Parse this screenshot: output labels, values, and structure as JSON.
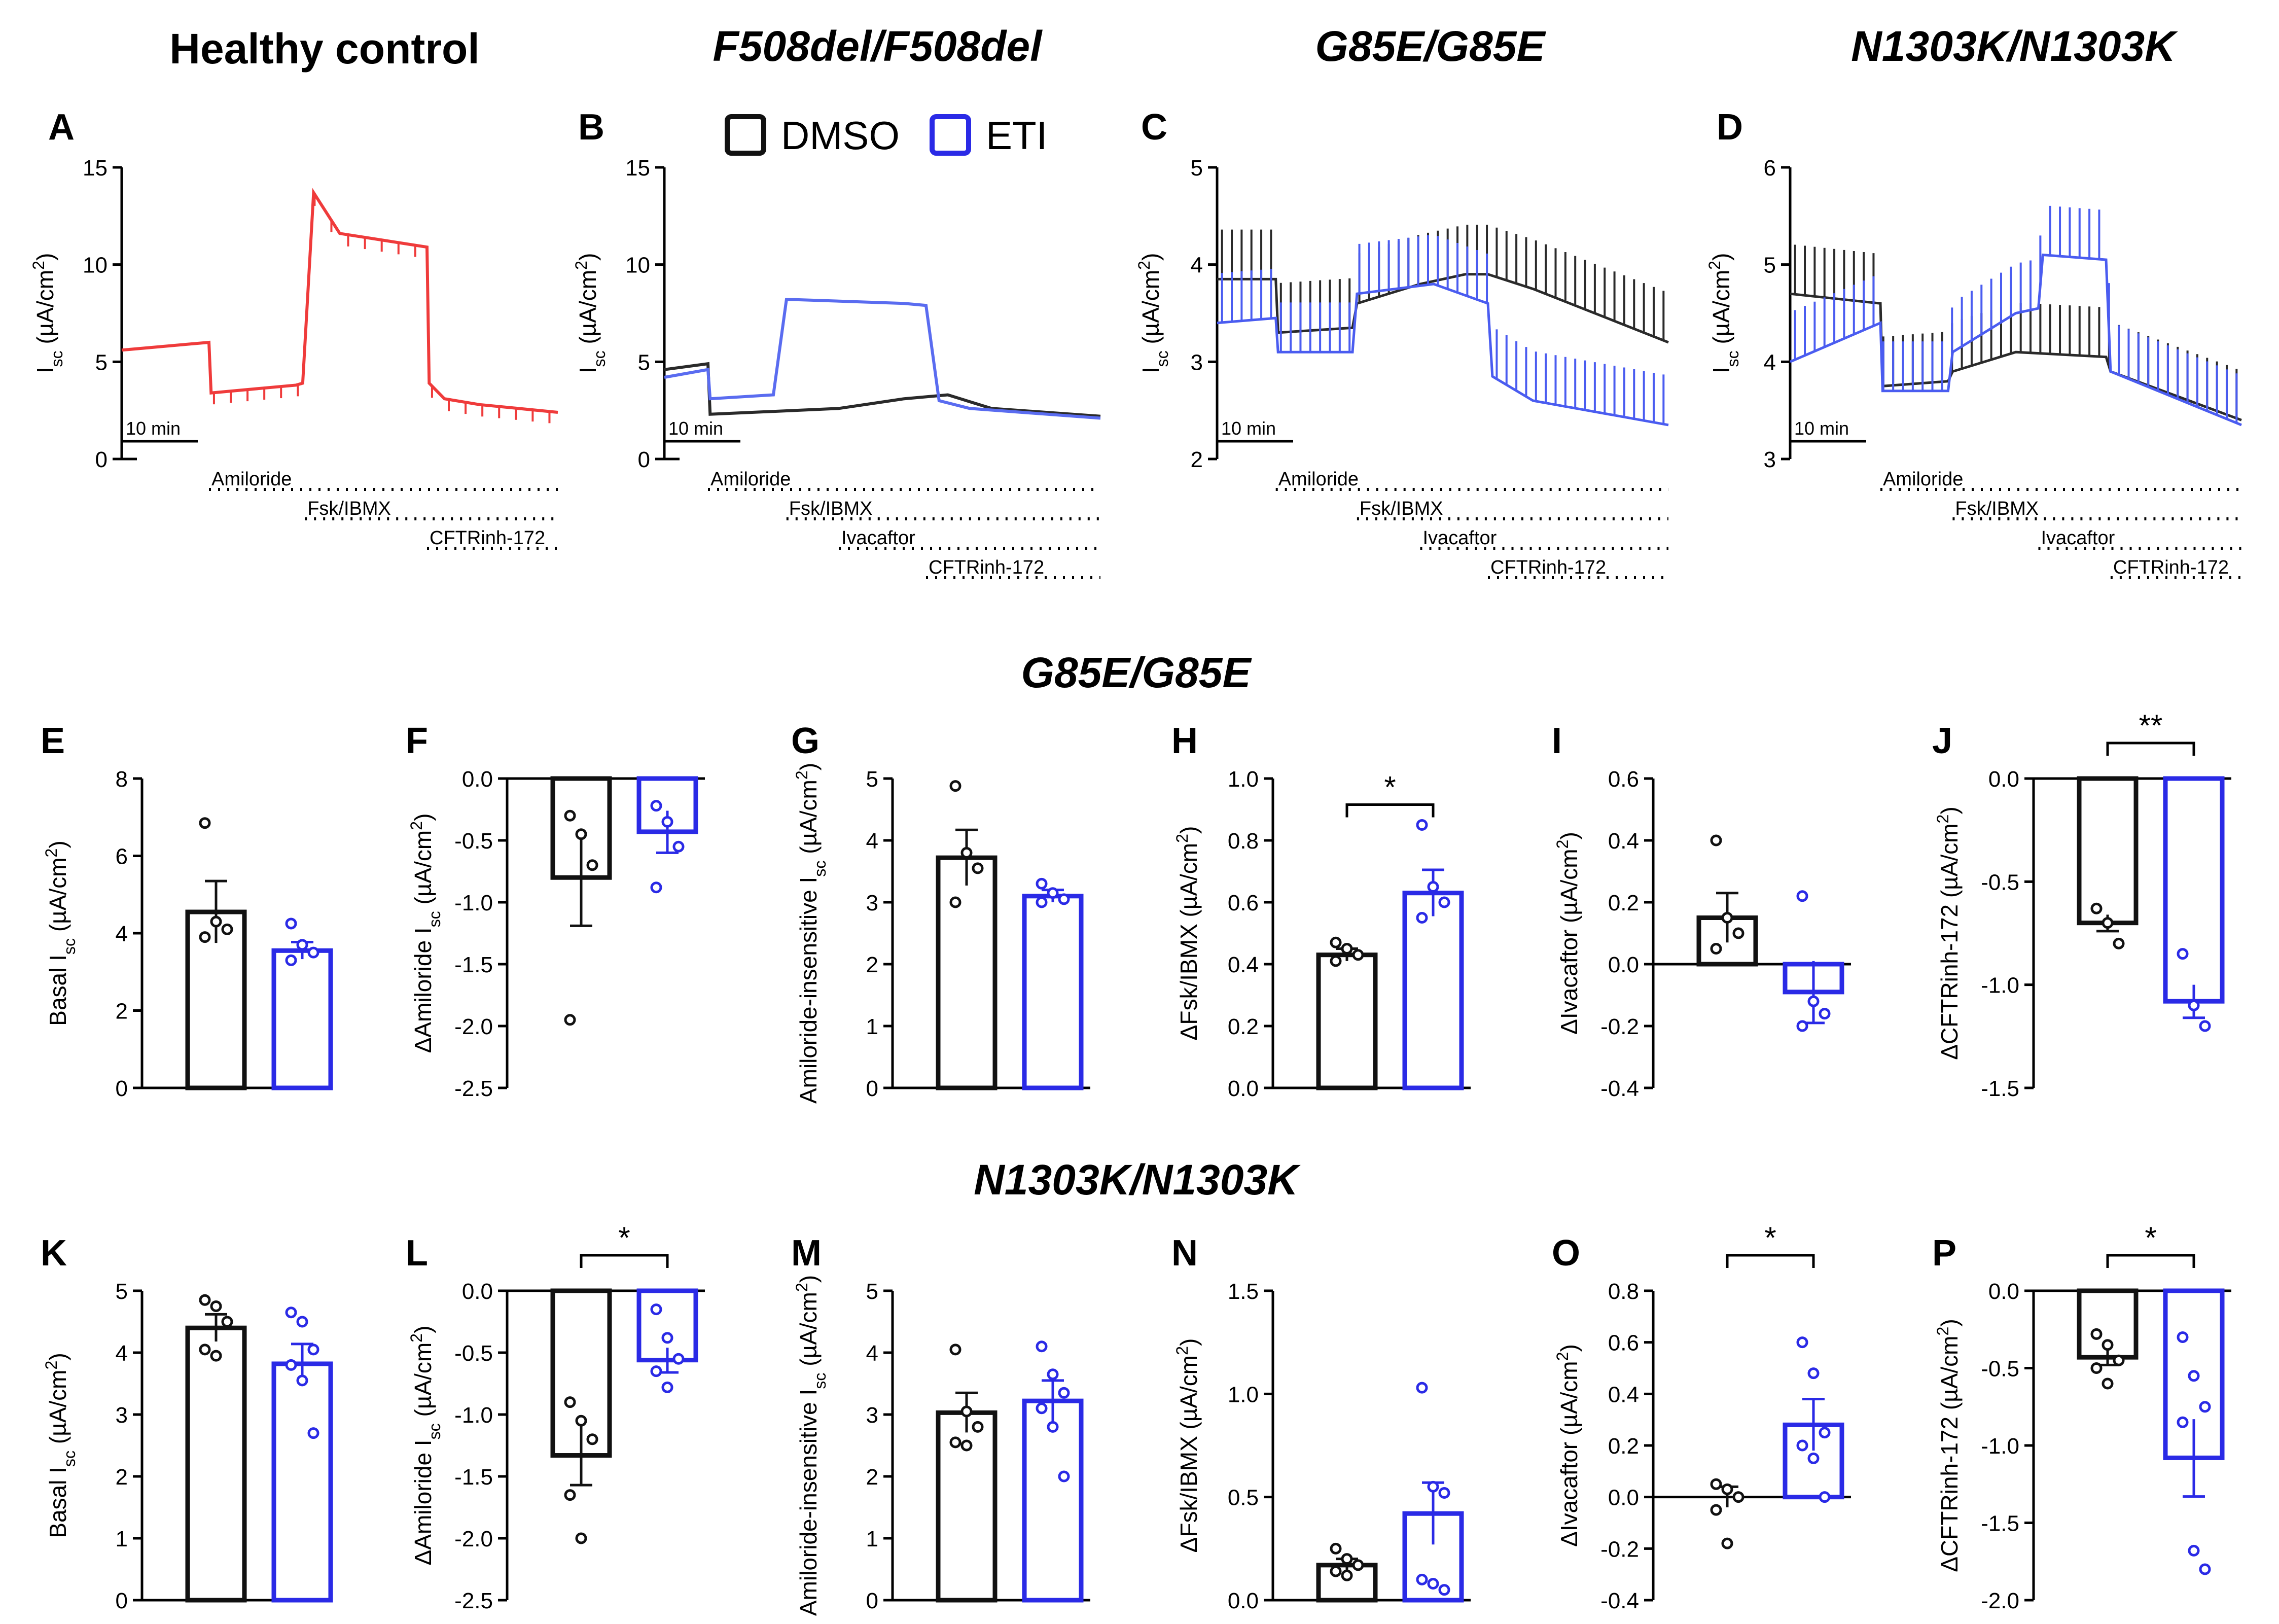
{
  "column_titles": [
    "Healthy control",
    "F508del/F508del",
    "G85E/G85E",
    "N1303K/N1303K"
  ],
  "row_titles": [
    "G85E/G85E",
    "N1303K/N1303K"
  ],
  "colors": {
    "dmso": "#111111",
    "eti": "#2a2ae6",
    "healthy": "#ef3b3b",
    "eti_trace": "#4a5cf0",
    "dmso_trace": "#2a2a2a"
  },
  "legend": [
    {
      "label": "DMSO",
      "color": "#111111"
    },
    {
      "label": "ETI",
      "color": "#2a2ae6"
    }
  ],
  "scale_bar_label": "10 min",
  "chart_data": [
    {
      "panel": "A",
      "type": "line",
      "ylabel": "I_sc (µA/cm²)",
      "ylim": [
        0,
        15
      ],
      "yticks": [
        "0",
        "5",
        "10",
        "15"
      ],
      "series": [
        {
          "color": "red",
          "x": [
            0,
            0.2,
            0.205,
            0.4,
            0.415,
            0.44,
            0.5,
            0.7,
            0.705,
            0.74,
            0.82,
            1.0
          ],
          "y": [
            5.6,
            6.0,
            3.4,
            3.8,
            3.9,
            13.7,
            11.6,
            10.9,
            3.9,
            3.1,
            2.8,
            2.4
          ],
          "spikes": true
        }
      ],
      "treatments": [
        {
          "label": "Amiloride",
          "start": 0.2
        },
        {
          "label": "Fsk/IBMX",
          "start": 0.42
        },
        {
          "label": "CFTRinh-172",
          "start": 0.7
        }
      ]
    },
    {
      "panel": "B",
      "type": "line",
      "ylabel": "I_sc (µA/cm²)",
      "ylim": [
        0,
        15
      ],
      "yticks": [
        "0",
        "5",
        "10",
        "15"
      ],
      "series": [
        {
          "name": "DMSO",
          "x": [
            0,
            0.1,
            0.105,
            0.4,
            0.55,
            0.65,
            0.75,
            1.0
          ],
          "y": [
            4.6,
            4.9,
            2.3,
            2.6,
            3.1,
            3.3,
            2.6,
            2.2
          ]
        },
        {
          "name": "ETI",
          "x": [
            0,
            0.1,
            0.105,
            0.25,
            0.28,
            0.3,
            0.55,
            0.6,
            0.63,
            0.7,
            1.0
          ],
          "y": [
            4.2,
            4.6,
            3.1,
            3.3,
            8.2,
            8.2,
            8.0,
            7.9,
            3.0,
            2.6,
            2.1
          ]
        }
      ],
      "treatments": [
        {
          "label": "Amiloride",
          "start": 0.1
        },
        {
          "label": "Fsk/IBMX",
          "start": 0.28
        },
        {
          "label": "Ivacaftor",
          "start": 0.4
        },
        {
          "label": "CFTRinh-172",
          "start": 0.6
        }
      ]
    },
    {
      "panel": "C",
      "type": "line",
      "ylabel": "I_sc (µA/cm²)",
      "ylim": [
        2,
        5
      ],
      "yticks": [
        "2",
        "3",
        "4",
        "5"
      ],
      "series": [
        {
          "name": "DMSO",
          "x": [
            0,
            0.13,
            0.135,
            0.3,
            0.31,
            0.45,
            0.55,
            0.6,
            0.7,
            1.0
          ],
          "y": [
            3.85,
            3.85,
            3.3,
            3.35,
            3.6,
            3.8,
            3.9,
            3.9,
            3.75,
            3.2
          ],
          "spikes": true
        },
        {
          "name": "ETI",
          "x": [
            0,
            0.13,
            0.135,
            0.3,
            0.31,
            0.48,
            0.6,
            0.61,
            0.7,
            1.0
          ],
          "y": [
            3.4,
            3.45,
            3.1,
            3.1,
            3.7,
            3.8,
            3.6,
            2.85,
            2.6,
            2.35
          ],
          "spikes": true
        }
      ],
      "treatments": [
        {
          "label": "Amiloride",
          "start": 0.13
        },
        {
          "label": "Fsk/IBMX",
          "start": 0.31
        },
        {
          "label": "Ivacaftor",
          "start": 0.45
        },
        {
          "label": "CFTRinh-172",
          "start": 0.6
        }
      ]
    },
    {
      "panel": "D",
      "type": "line",
      "ylabel": "I_sc (µA/cm²)",
      "ylim": [
        3,
        6
      ],
      "yticks": [
        "3",
        "4",
        "5",
        "6"
      ],
      "series": [
        {
          "name": "DMSO",
          "x": [
            0,
            0.2,
            0.205,
            0.35,
            0.36,
            0.5,
            0.7,
            0.71,
            1.0
          ],
          "y": [
            4.7,
            4.6,
            3.75,
            3.8,
            3.9,
            4.1,
            4.05,
            3.9,
            3.4
          ],
          "spikes": true
        },
        {
          "name": "ETI",
          "x": [
            0,
            0.2,
            0.205,
            0.35,
            0.36,
            0.5,
            0.55,
            0.56,
            0.7,
            0.71,
            1.0
          ],
          "y": [
            4.0,
            4.4,
            3.7,
            3.7,
            4.1,
            4.5,
            4.55,
            5.1,
            5.05,
            3.9,
            3.35
          ],
          "spikes": true
        }
      ],
      "treatments": [
        {
          "label": "Amiloride",
          "start": 0.2
        },
        {
          "label": "Fsk/IBMX",
          "start": 0.36
        },
        {
          "label": "Ivacaftor",
          "start": 0.55
        },
        {
          "label": "CFTRinh-172",
          "start": 0.71
        }
      ]
    },
    {
      "panel": "E",
      "type": "bar",
      "ylabel": "Basal I_sc (µA/cm²)",
      "ylim": [
        0,
        8
      ],
      "yticks": [
        "0",
        "2",
        "4",
        "6",
        "8"
      ],
      "series": [
        {
          "name": "DMSO",
          "mean": 4.55,
          "sem": 0.8,
          "points": [
            6.85,
            4.3,
            4.1,
            3.9
          ]
        },
        {
          "name": "ETI",
          "mean": 3.55,
          "sem": 0.22,
          "points": [
            4.25,
            3.7,
            3.5,
            3.3
          ]
        }
      ]
    },
    {
      "panel": "F",
      "type": "bar",
      "ylabel": "ΔAmiloride I_sc (µA/cm²)",
      "ylim": [
        -2.5,
        0
      ],
      "yticks": [
        "-2.5",
        "-2.0",
        "-1.5",
        "-1.0",
        "-0.5",
        "0.0"
      ],
      "series": [
        {
          "name": "DMSO",
          "mean": -0.8,
          "sem": 0.39,
          "points": [
            -0.3,
            -0.45,
            -0.7,
            -1.95
          ]
        },
        {
          "name": "ETI",
          "mean": -0.43,
          "sem": 0.17,
          "points": [
            -0.22,
            -0.35,
            -0.55,
            -0.88
          ]
        }
      ]
    },
    {
      "panel": "G",
      "type": "bar",
      "ylabel": "Amiloride-insensitive I_sc (µA/cm²)",
      "ylim": [
        0,
        5
      ],
      "yticks": [
        "0",
        "1",
        "2",
        "3",
        "4",
        "5"
      ],
      "series": [
        {
          "name": "DMSO",
          "mean": 3.72,
          "sem": 0.45,
          "points": [
            4.88,
            3.8,
            3.55,
            3.0
          ]
        },
        {
          "name": "ETI",
          "mean": 3.1,
          "sem": 0.1,
          "points": [
            3.3,
            3.15,
            3.05,
            3.0
          ]
        }
      ]
    },
    {
      "panel": "H",
      "type": "bar",
      "ylabel": "ΔFsk/IBMX (µA/cm²)",
      "ylim": [
        0,
        1.0
      ],
      "yticks": [
        "0.0",
        "0.2",
        "0.4",
        "0.6",
        "0.8",
        "1.0"
      ],
      "significance": "*",
      "series": [
        {
          "name": "DMSO",
          "mean": 0.43,
          "sem": 0.02,
          "points": [
            0.47,
            0.45,
            0.43,
            0.41
          ]
        },
        {
          "name": "ETI",
          "mean": 0.63,
          "sem": 0.075,
          "points": [
            0.85,
            0.65,
            0.6,
            0.55
          ]
        }
      ]
    },
    {
      "panel": "I",
      "type": "bar",
      "ylabel": "ΔIvacaftor (µA/cm²)",
      "ylim": [
        -0.4,
        0.6
      ],
      "yticks": [
        "-0.4",
        "-0.2",
        "0.0",
        "0.2",
        "0.4",
        "0.6"
      ],
      "series": [
        {
          "name": "DMSO",
          "mean": 0.15,
          "sem": 0.08,
          "points": [
            0.4,
            0.15,
            0.1,
            0.05
          ]
        },
        {
          "name": "ETI",
          "mean": -0.09,
          "sem": 0.1,
          "points": [
            0.22,
            -0.12,
            -0.16,
            -0.2
          ]
        }
      ]
    },
    {
      "panel": "J",
      "type": "bar",
      "ylabel": "ΔCFTRinh-172 (µA/cm²)",
      "ylim": [
        -1.5,
        0
      ],
      "yticks": [
        "-1.5",
        "-1.0",
        "-0.5",
        "0.0"
      ],
      "significance": "**",
      "series": [
        {
          "name": "DMSO",
          "mean": -0.7,
          "sem": 0.04,
          "points": [
            -0.63,
            -0.7,
            -0.8
          ]
        },
        {
          "name": "ETI",
          "mean": -1.08,
          "sem": 0.08,
          "points": [
            -0.85,
            -1.1,
            -1.2
          ]
        }
      ]
    },
    {
      "panel": "K",
      "type": "bar",
      "ylabel": "Basal I_sc (µA/cm²)",
      "ylim": [
        0,
        5
      ],
      "yticks": [
        "0",
        "1",
        "2",
        "3",
        "4",
        "5"
      ],
      "series": [
        {
          "name": "DMSO",
          "mean": 4.4,
          "sem": 0.22,
          "points": [
            4.85,
            4.75,
            4.5,
            4.05,
            3.95
          ]
        },
        {
          "name": "ETI",
          "mean": 3.82,
          "sem": 0.32,
          "points": [
            4.65,
            4.5,
            4.05,
            3.8,
            3.55,
            2.7
          ]
        }
      ]
    },
    {
      "panel": "L",
      "type": "bar",
      "ylabel": "ΔAmiloride I_sc (µA/cm²)",
      "ylim": [
        -2.5,
        0
      ],
      "yticks": [
        "-2.5",
        "-2.0",
        "-1.5",
        "-1.0",
        "-0.5",
        "0.0"
      ],
      "significance": "*",
      "series": [
        {
          "name": "DMSO",
          "mean": -1.33,
          "sem": 0.24,
          "points": [
            -0.9,
            -1.05,
            -1.2,
            -1.65,
            -2.0
          ]
        },
        {
          "name": "ETI",
          "mean": -0.56,
          "sem": 0.1,
          "points": [
            -0.15,
            -0.38,
            -0.55,
            -0.65,
            -0.78
          ]
        }
      ]
    },
    {
      "panel": "M",
      "type": "bar",
      "ylabel": "Amiloride-insensitive I_sc (µA/cm²)",
      "ylim": [
        0,
        5
      ],
      "yticks": [
        "0",
        "1",
        "2",
        "3",
        "4",
        "5"
      ],
      "series": [
        {
          "name": "DMSO",
          "mean": 3.03,
          "sem": 0.32,
          "points": [
            4.05,
            3.05,
            2.8,
            2.55,
            2.5
          ]
        },
        {
          "name": "ETI",
          "mean": 3.22,
          "sem": 0.33,
          "points": [
            4.1,
            3.65,
            3.35,
            3.1,
            2.8,
            2.0
          ]
        }
      ]
    },
    {
      "panel": "N",
      "type": "bar",
      "ylabel": "ΔFsk/IBMX (µA/cm²)",
      "ylim": [
        0,
        1.5
      ],
      "yticks": [
        "0.0",
        "0.5",
        "1.0",
        "1.5"
      ],
      "series": [
        {
          "name": "DMSO",
          "mean": 0.17,
          "sem": 0.03,
          "points": [
            0.25,
            0.2,
            0.17,
            0.14,
            0.12
          ]
        },
        {
          "name": "ETI",
          "mean": 0.42,
          "sem": 0.15,
          "points": [
            1.03,
            0.55,
            0.52,
            0.1,
            0.08,
            0.05
          ]
        }
      ]
    },
    {
      "panel": "O",
      "type": "bar",
      "ylabel": "ΔIvacaftor (µA/cm²)",
      "ylim": [
        -0.4,
        0.8
      ],
      "yticks": [
        "-0.4",
        "-0.2",
        "0.0",
        "0.2",
        "0.4",
        "0.6",
        "0.8"
      ],
      "significance": "*",
      "series": [
        {
          "name": "DMSO",
          "mean": 0.0,
          "sem": 0.04,
          "points": [
            0.05,
            0.03,
            0.0,
            -0.05,
            -0.18
          ]
        },
        {
          "name": "ETI",
          "mean": 0.28,
          "sem": 0.1,
          "points": [
            0.6,
            0.48,
            0.25,
            0.2,
            0.15,
            0.0
          ]
        }
      ]
    },
    {
      "panel": "P",
      "type": "bar",
      "ylabel": "ΔCFTRinh-172 (µA/cm²)",
      "ylim": [
        -2.0,
        0
      ],
      "yticks": [
        "-2.0",
        "-1.5",
        "-1.0",
        "-0.5",
        "0.0"
      ],
      "significance": "*",
      "series": [
        {
          "name": "DMSO",
          "mean": -0.43,
          "sem": 0.05,
          "points": [
            -0.28,
            -0.35,
            -0.45,
            -0.5,
            -0.6
          ]
        },
        {
          "name": "ETI",
          "mean": -1.08,
          "sem": 0.25,
          "points": [
            -0.3,
            -0.55,
            -0.75,
            -0.85,
            -1.68,
            -1.8
          ]
        }
      ]
    }
  ]
}
